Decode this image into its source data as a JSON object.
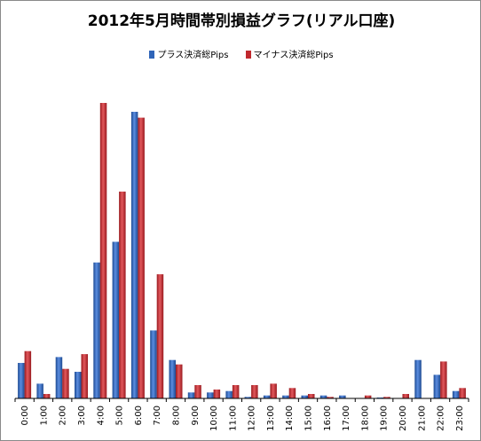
{
  "chart_data": {
    "type": "bar",
    "title": "2012年5月時間帯別損益グラフ(リアル口座)",
    "categories": [
      "0:00",
      "1:00",
      "2:00",
      "3:00",
      "4:00",
      "5:00",
      "6:00",
      "7:00",
      "8:00",
      "9:00",
      "10:00",
      "11:00",
      "12:00",
      "13:00",
      "14:00",
      "15:00",
      "16:00",
      "17:00",
      "18:00",
      "19:00",
      "20:00",
      "21:00",
      "22:00",
      "23:00"
    ],
    "series": [
      {
        "name": "プラス決済総Pips",
        "color": "#2f64b8",
        "values": [
          12,
          5,
          14,
          9,
          46,
          53,
          97,
          23,
          13,
          2,
          2,
          2.5,
          0.5,
          1,
          1,
          1,
          1,
          1,
          0,
          0.3,
          0,
          13,
          8,
          2.5
        ]
      },
      {
        "name": "マイナス決済総Pips",
        "color": "#c0282d",
        "values": [
          16,
          1.5,
          10,
          15,
          100,
          70,
          95,
          42,
          11.5,
          4.5,
          3,
          4.5,
          4.5,
          5,
          3.5,
          1.5,
          0.5,
          0,
          1,
          0.5,
          1.5,
          0,
          12.5,
          3.5
        ]
      }
    ],
    "ylim": [
      0,
      100
    ],
    "legend_position": "top",
    "grid": false
  }
}
